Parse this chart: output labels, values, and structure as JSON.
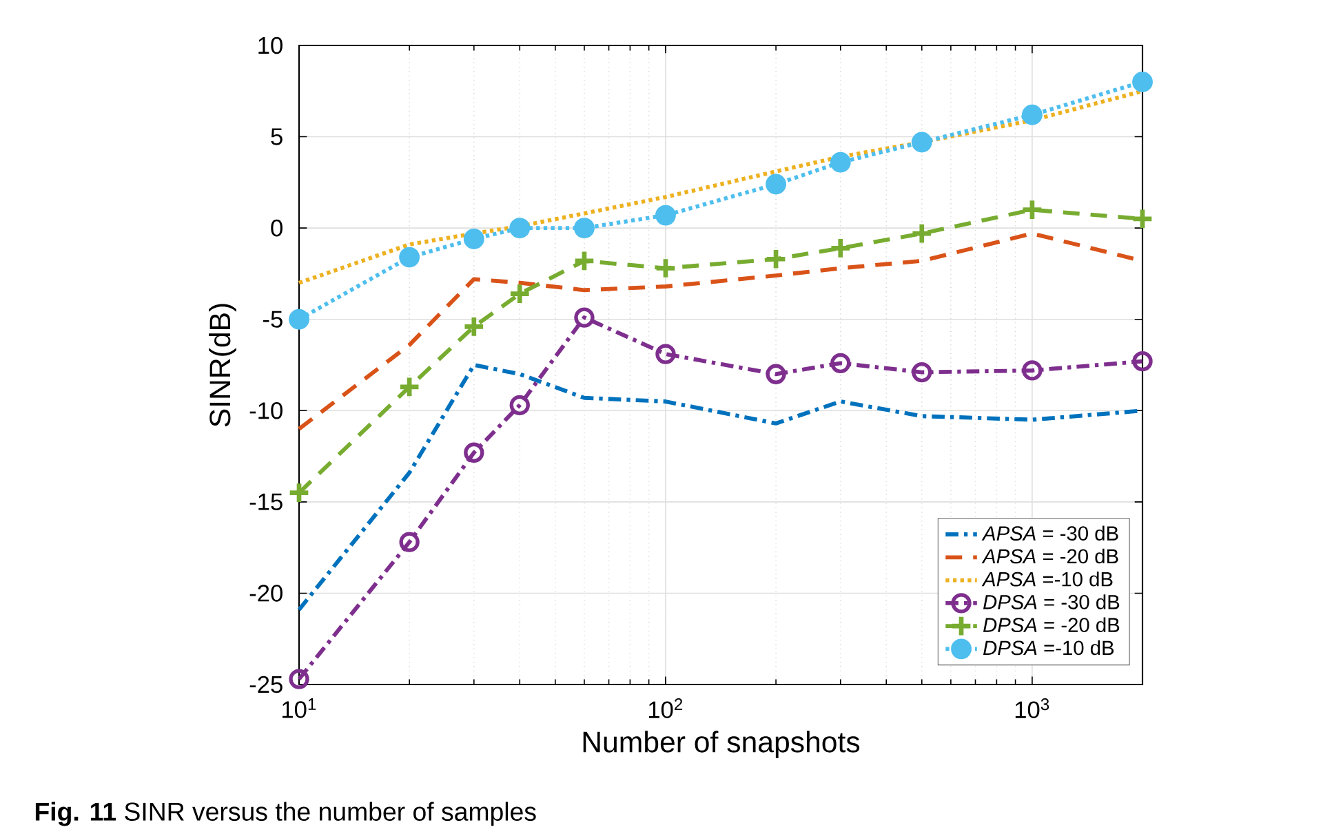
{
  "chart_data": {
    "type": "line",
    "xlabel": "Number of snapshots",
    "ylabel": "SINR(dB)",
    "annotations": [
      "**Fig. 11** SINR versus the number of samples"
    ],
    "x": [
      10,
      20,
      30,
      40,
      60,
      100,
      200,
      300,
      500,
      1000,
      2000
    ],
    "log": "x",
    "xlim": [
      10,
      2000
    ],
    "ylim": [
      -25,
      10
    ],
    "xticks": [
      {
        "value": 10,
        "label": "10$^{1}$"
      },
      {
        "value": 100,
        "label": "10$^{2}$"
      },
      {
        "value": 1000,
        "label": "10$^{3}$"
      }
    ],
    "yticks": [
      -25,
      -20,
      -15,
      -10,
      -5,
      0,
      5,
      10
    ],
    "grid": true,
    "legend": "bottom right",
    "series": [
      {
        "name": "*APSA* = -30 dB",
        "color": "#0072bd",
        "line_style": "dashdot",
        "marker": "none",
        "values": [
          -20.9,
          -13.4,
          -7.5,
          -8.0,
          -9.3,
          -9.5,
          -10.7,
          -9.5,
          -10.3,
          -10.5,
          -10.0
        ]
      },
      {
        "name": "*APSA* = -20 dB",
        "color": "#d95319",
        "line_style": "dashed",
        "marker": "none",
        "values": [
          -11.0,
          -6.4,
          -2.8,
          -3.0,
          -3.4,
          -3.2,
          -2.6,
          -2.2,
          -1.8,
          -0.3,
          -1.8
        ]
      },
      {
        "name": "*APSA* =-10 dB",
        "color": "#edb120",
        "line_style": "dotted",
        "marker": "none",
        "values": [
          -3.0,
          -0.9,
          -0.3,
          0.1,
          0.8,
          1.7,
          3.1,
          3.9,
          4.7,
          5.9,
          7.5
        ]
      },
      {
        "name": "*DPSA*  = -30 dB",
        "color": "#7e2f8e",
        "line_style": "dashdot",
        "marker": "circle",
        "values": [
          -24.7,
          -17.2,
          -12.3,
          -9.7,
          -4.9,
          -6.9,
          -8.0,
          -7.4,
          -7.9,
          -7.8,
          -7.3
        ]
      },
      {
        "name": "*DPSA*  = -20 dB",
        "color": "#77ac30",
        "line_style": "dashed",
        "marker": "cross",
        "values": [
          -14.5,
          -8.7,
          -5.4,
          -3.6,
          -1.8,
          -2.2,
          -1.7,
          -1.1,
          -0.3,
          1.0,
          0.5
        ]
      },
      {
        "name": "*DPSA* =-10 dB",
        "color": "#4dbeee",
        "line_style": "dotted",
        "marker": "filled_circle",
        "values": [
          -5.0,
          -1.6,
          -0.6,
          0.0,
          0.0,
          0.7,
          2.4,
          3.6,
          4.7,
          6.2,
          8.0
        ]
      }
    ]
  }
}
